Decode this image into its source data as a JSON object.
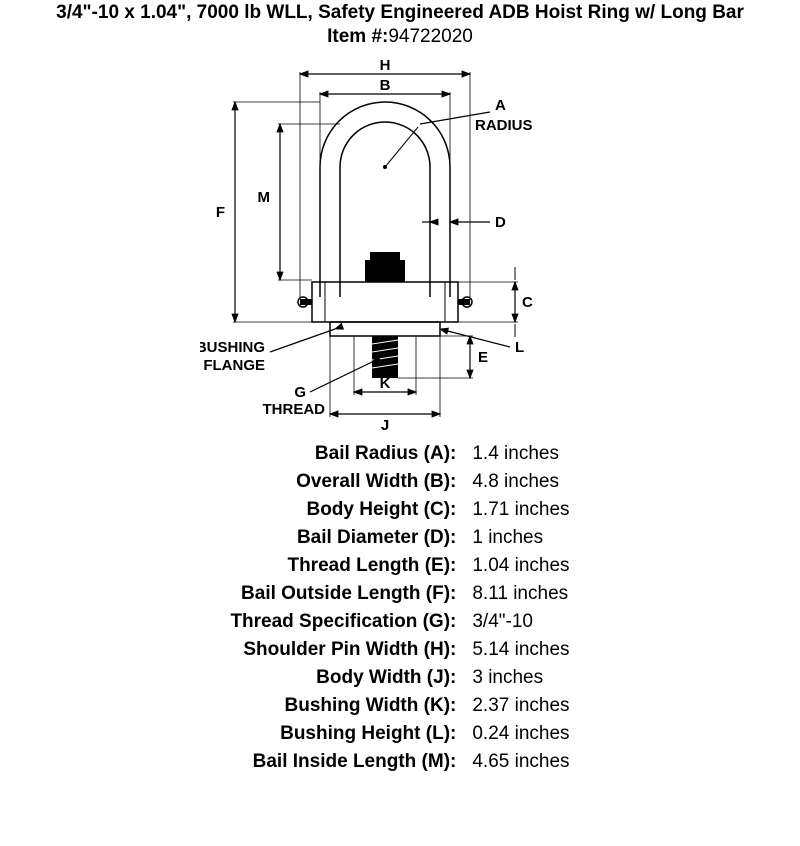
{
  "title": "3/4\"-10 x 1.04\", 7000 lb WLL, Safety Engineered ADB Hoist Ring w/ Long Bar",
  "item_label": "Item #:",
  "item_number": "94722020",
  "diagram": {
    "labels": {
      "H": "H",
      "B": "B",
      "A": "A",
      "RADIUS": "RADIUS",
      "M": "M",
      "F": "F",
      "D": "D",
      "C": "C",
      "E": "E",
      "L": "L",
      "K": "K",
      "J": "J",
      "G": "G",
      "THREAD": "THREAD",
      "BUSHING": "BUSHING",
      "FLANGE": "FLANGE"
    },
    "colors": {
      "stroke": "#000000",
      "fill_black": "#000000",
      "background": "#ffffff"
    },
    "font_family": "Arial",
    "font_size": 15,
    "font_weight": "bold",
    "line_width": 1.5
  },
  "specs": [
    {
      "label": "Bail Radius (A):",
      "value": "1.4 inches"
    },
    {
      "label": "Overall Width (B):",
      "value": "4.8 inches"
    },
    {
      "label": "Body Height (C):",
      "value": "1.71 inches"
    },
    {
      "label": "Bail Diameter (D):",
      "value": "1 inches"
    },
    {
      "label": "Thread Length (E):",
      "value": "1.04 inches"
    },
    {
      "label": "Bail Outside Length (F):",
      "value": "8.11 inches"
    },
    {
      "label": "Thread Specification (G):",
      "value": "3/4\"-10"
    },
    {
      "label": "Shoulder Pin Width (H):",
      "value": "5.14 inches"
    },
    {
      "label": "Body Width (J):",
      "value": "3 inches"
    },
    {
      "label": "Bushing Width (K):",
      "value": "2.37 inches"
    },
    {
      "label": "Bushing Height (L):",
      "value": "0.24 inches"
    },
    {
      "label": "Bail Inside Length (M):",
      "value": "4.65 inches"
    }
  ]
}
